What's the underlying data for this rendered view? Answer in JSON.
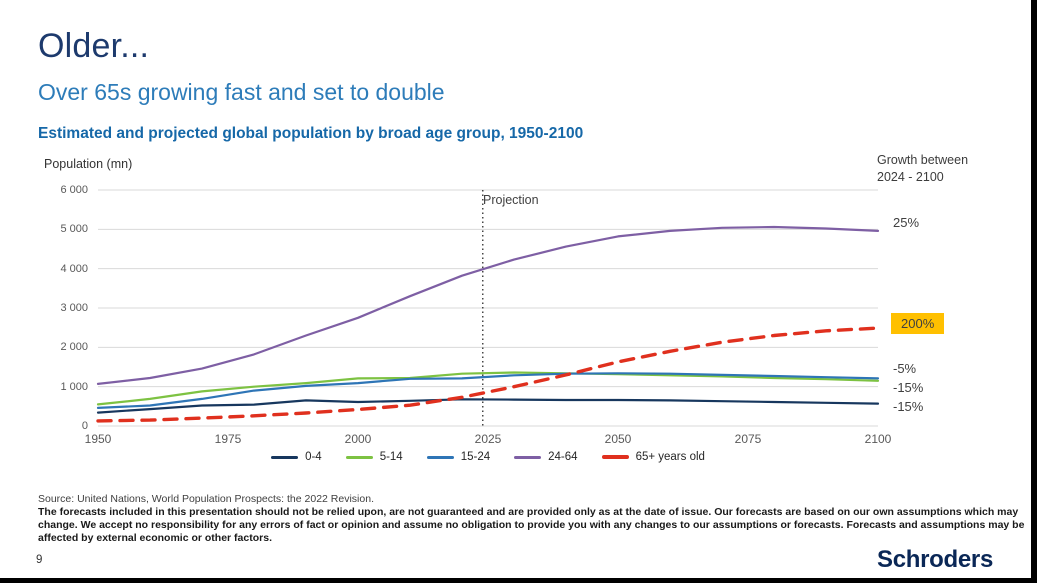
{
  "slide": {
    "headline": "Older...",
    "subheadline": "Over 65s growing fast and set to double",
    "chart_title": "Estimated and projected global population by broad age group, 1950-2100",
    "page_number": "9",
    "logo_text": "Schroders"
  },
  "growth_panel": {
    "header": "Growth between 2024 - 2100",
    "highlight_color": "#FFC000",
    "labels": [
      {
        "text": "25%",
        "series": "24-64",
        "highlight": false
      },
      {
        "text": "200%",
        "series": "65+ years old",
        "highlight": true
      },
      {
        "text": "-5%",
        "series": "15-24",
        "highlight": false
      },
      {
        "text": "-15%",
        "series": "5-14",
        "highlight": false
      },
      {
        "text": "-15%",
        "series": "0-4",
        "highlight": false
      }
    ]
  },
  "footer": {
    "source": "Source: United Nations, World Population Prospects: the 2022 Revision.",
    "disclaimer": "The forecasts included in this presentation should not be relied upon, are not guaranteed and are provided only as at the date of issue. Our forecasts are based on our own assumptions which may change. We accept no responsibility for any errors of fact or opinion and assume no obligation to provide you with any changes to our assumptions or forecasts. Forecasts and assumptions may be affected by external economic or other factors."
  },
  "chart_data": {
    "type": "line",
    "title": "Estimated and projected global population by broad age group, 1950-2100",
    "xlabel": "",
    "ylabel": "Population (mn)",
    "xlim": [
      1950,
      2100
    ],
    "ylim": [
      0,
      6000
    ],
    "grid": true,
    "legend_position": "bottom",
    "x_ticks": [
      1950,
      1975,
      2000,
      2025,
      2050,
      2075,
      2100
    ],
    "y_ticks": [
      0,
      1000,
      2000,
      3000,
      4000,
      5000,
      6000
    ],
    "y_tick_labels": [
      "0",
      "1 000",
      "2 000",
      "3 000",
      "4 000",
      "5 000",
      "6 000"
    ],
    "projection": {
      "label": "Projection",
      "year": 2024
    },
    "x": [
      1950,
      1960,
      1970,
      1980,
      1990,
      2000,
      2010,
      2020,
      2030,
      2040,
      2050,
      2060,
      2070,
      2080,
      2090,
      2100
    ],
    "series": [
      {
        "name": "0-4",
        "color": "#17375E",
        "dashed": false,
        "values": [
          340,
          430,
          520,
          545,
          650,
          610,
          640,
          680,
          670,
          660,
          660,
          650,
          630,
          610,
          590,
          570
        ]
      },
      {
        "name": "5-14",
        "color": "#7DC242",
        "dashed": false,
        "values": [
          550,
          690,
          880,
          1000,
          1090,
          1210,
          1220,
          1330,
          1360,
          1340,
          1320,
          1290,
          1260,
          1220,
          1190,
          1150
        ]
      },
      {
        "name": "15-24",
        "color": "#2E75B6",
        "dashed": false,
        "values": [
          460,
          520,
          690,
          900,
          1020,
          1090,
          1200,
          1210,
          1290,
          1330,
          1340,
          1330,
          1300,
          1270,
          1240,
          1210
        ]
      },
      {
        "name": "24-64",
        "color": "#7E5FA4",
        "dashed": false,
        "values": [
          1070,
          1220,
          1460,
          1820,
          2300,
          2750,
          3300,
          3820,
          4230,
          4560,
          4820,
          4960,
          5040,
          5060,
          5020,
          4960
        ]
      },
      {
        "name": "65+ years old",
        "color": "#E0301E",
        "dashed": true,
        "values": [
          130,
          150,
          200,
          260,
          330,
          420,
          530,
          730,
          1000,
          1300,
          1630,
          1900,
          2130,
          2300,
          2420,
          2490
        ]
      }
    ]
  }
}
